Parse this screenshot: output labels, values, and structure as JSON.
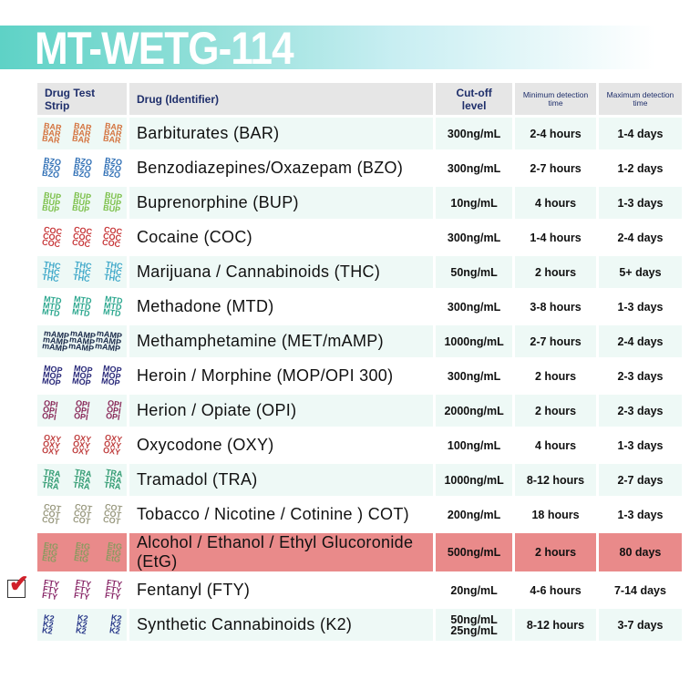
{
  "title": "MT-WETG-114",
  "headers": {
    "strip": "Drug Test Strip",
    "drug": "Drug (Identifier)",
    "cutoff": "Cut-off level",
    "min": "Minimum detection time",
    "max": "Maximum detection time"
  },
  "highlight_color": "#e98a8a",
  "rows": [
    {
      "code": "BAR",
      "drug": "Barbiturates (BAR)",
      "cutoff": "300ng/mL",
      "min": "2-4 hours",
      "max": "1-4 days",
      "color": "#d4733f"
    },
    {
      "code": "BZO",
      "drug": "Benzodiazepines/Oxazepam (BZO)",
      "cutoff": "300ng/mL",
      "min": "2-7 hours",
      "max": "1-2 days",
      "color": "#2f6fb5"
    },
    {
      "code": "BUP",
      "drug": "Buprenorphine (BUP)",
      "cutoff": "10ng/mL",
      "min": "4 hours",
      "max": "1-3 days",
      "color": "#7cc04a"
    },
    {
      "code": "COC",
      "drug": "Cocaine (COC)",
      "cutoff": "300ng/mL",
      "min": "1-4 hours",
      "max": "2-4 days",
      "color": "#c8383a"
    },
    {
      "code": "THC",
      "drug": "Marijuana / Cannabinoids (THC)",
      "cutoff": "50ng/mL",
      "min": "2 hours",
      "max": "5+ days",
      "color": "#3aa6c8"
    },
    {
      "code": "MTD",
      "drug": "Methadone (MTD)",
      "cutoff": "300ng/mL",
      "min": "3-8 hours",
      "max": "1-3 days",
      "color": "#2fa890"
    },
    {
      "code": "mAMP",
      "drug": "Methamphetamine (MET/mAMP)",
      "cutoff": "1000ng/mL",
      "min": "2-7 hours",
      "max": "2-4 days",
      "color": "#1a2a4a"
    },
    {
      "code": "MOP",
      "drug": "Heroin / Morphine (MOP/OPI 300)",
      "cutoff": "300ng/mL",
      "min": "2 hours",
      "max": "2-3 days",
      "color": "#2a2a7a"
    },
    {
      "code": "OPI",
      "drug": "Herion / Opiate (OPI)",
      "cutoff": "2000ng/mL",
      "min": "2 hours",
      "max": "2-3 days",
      "color": "#8a2a5a"
    },
    {
      "code": "OXY",
      "drug": "Oxycodone (OXY)",
      "cutoff": "100ng/mL",
      "min": "4 hours",
      "max": "1-3 days",
      "color": "#c04040"
    },
    {
      "code": "TRA",
      "drug": "Tramadol (TRA)",
      "cutoff": "1000ng/mL",
      "min": "8-12 hours",
      "max": "2-7 days",
      "color": "#2f9a70"
    },
    {
      "code": "COT",
      "drug": "Tobacco / Nicotine / Cotinine ) COT)",
      "cutoff": "200ng/mL",
      "min": "18 hours",
      "max": "1-3 days",
      "color": "#9a9a80"
    },
    {
      "code": "EtG",
      "drug": "Alcohol / Ethanol / Ethyl Glucoronide (EtG)",
      "cutoff": "500ng/mL",
      "min": "2 hours",
      "max": "80 days",
      "color": "#8a9a60",
      "checked": true
    },
    {
      "code": "FTY",
      "drug": "Fentanyl (FTY)",
      "cutoff": "20ng/mL",
      "min": "4-6 hours",
      "max": "7-14 days",
      "color": "#8a2a6a"
    },
    {
      "code": "K2",
      "drug": "Synthetic Cannabinoids (K2)",
      "cutoff": "50ng/mL\n25ng/mL",
      "min": "8-12 hours",
      "max": "3-7 days",
      "color": "#2a3a8a"
    }
  ]
}
